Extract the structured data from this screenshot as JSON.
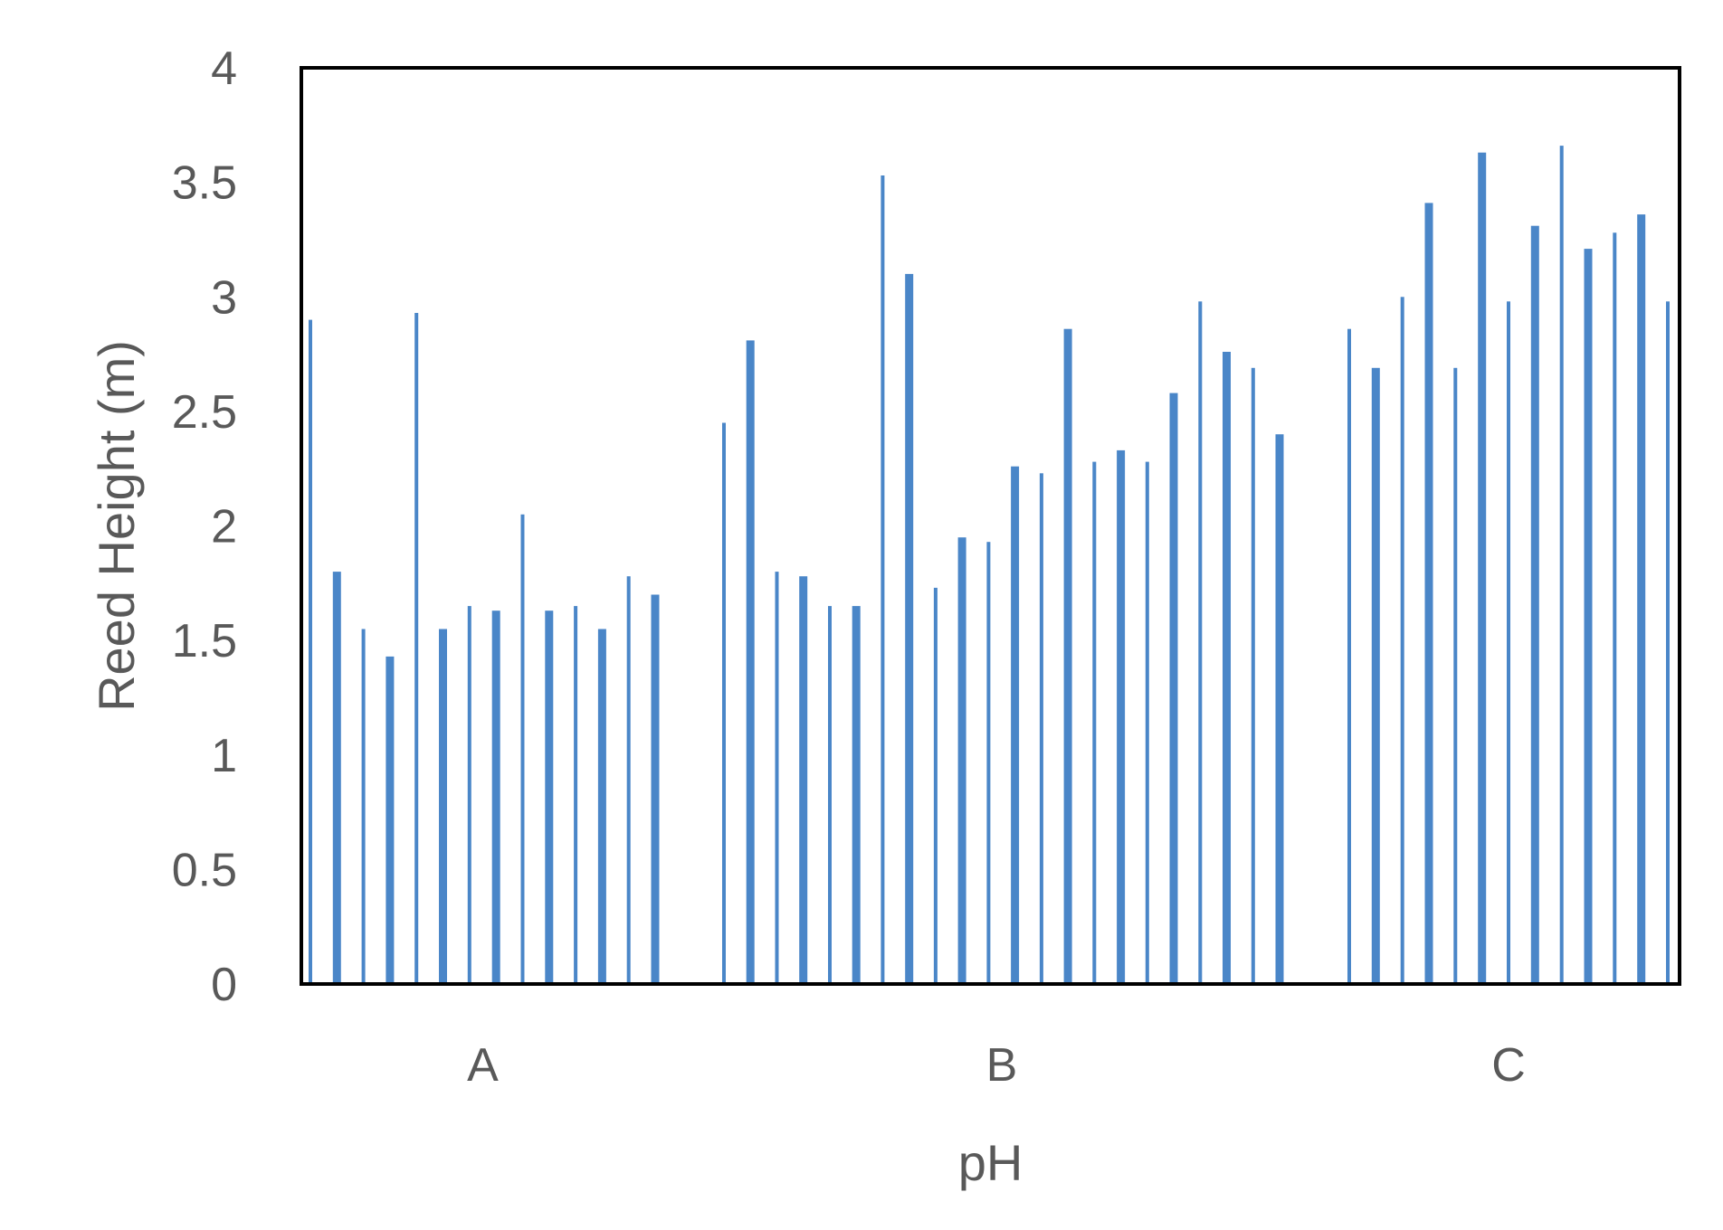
{
  "chart_data": {
    "type": "bar",
    "xlabel": "pH",
    "ylabel": "Reed Height (m)",
    "ylim": [
      0,
      4
    ],
    "yticks": [
      "0",
      "0.5",
      "1",
      "1.5",
      "2",
      "2.5",
      "3",
      "3.5",
      "4"
    ],
    "grid": false,
    "legend": "none",
    "bar_color": "#4a86c8",
    "categories": [
      "A",
      "B",
      "C"
    ],
    "groups": [
      {
        "category": "A",
        "values": [
          2.9,
          1.8,
          1.55,
          1.43,
          2.93,
          1.55,
          1.65,
          1.63,
          2.05,
          1.63,
          1.65,
          1.55,
          1.78,
          1.7
        ]
      },
      {
        "category": "B",
        "values": [
          2.45,
          2.81,
          1.8,
          1.78,
          1.65,
          1.65,
          3.53,
          3.1,
          1.73,
          1.95,
          1.93,
          2.26,
          2.23,
          2.86,
          2.28,
          2.33,
          2.28,
          2.58,
          2.98,
          2.76,
          2.69,
          2.4
        ]
      },
      {
        "category": "C",
        "values": [
          2.86,
          2.69,
          3.0,
          3.41,
          2.69,
          3.63,
          2.98,
          3.31,
          3.66,
          3.21,
          3.28,
          3.36,
          2.98
        ]
      }
    ]
  }
}
